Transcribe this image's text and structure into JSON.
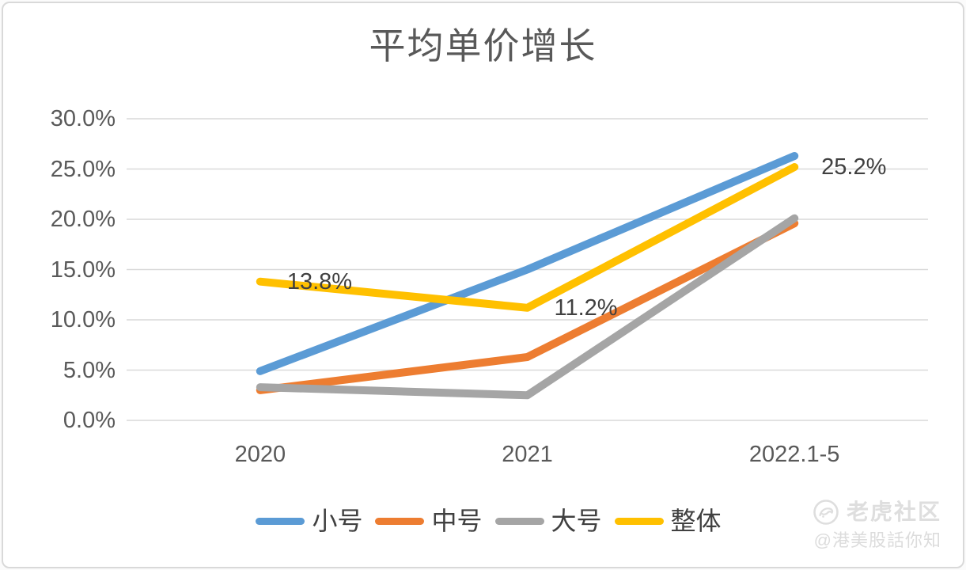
{
  "card": {
    "background": "#ffffff",
    "border_color": "#d9d9d9"
  },
  "chart_data": {
    "type": "line",
    "title": "平均单价增长",
    "title_color": "#595959",
    "categories": [
      "2020",
      "2021",
      "2022.1-5"
    ],
    "series": [
      {
        "name": "小号",
        "color": "#5b9bd5",
        "values": [
          4.9,
          15.0,
          26.3
        ]
      },
      {
        "name": "中号",
        "color": "#ed7d31",
        "values": [
          3.0,
          6.3,
          19.6
        ]
      },
      {
        "name": "大号",
        "color": "#a5a5a5",
        "values": [
          3.3,
          2.5,
          20.1
        ]
      },
      {
        "name": "整体",
        "color": "#ffc000",
        "values": [
          13.8,
          11.2,
          25.2
        ]
      }
    ],
    "y_axis": {
      "ticks": [
        "30.0%",
        "25.0%",
        "20.0%",
        "15.0%",
        "10.0%",
        "5.0%",
        "0.0%"
      ],
      "min": 0,
      "max": 30,
      "step": 5,
      "label_color": "#595959"
    },
    "x_axis": {
      "label_color": "#595959"
    },
    "grid": {
      "show": true,
      "color": "#d9d9d9"
    },
    "data_labels": [
      {
        "text": "13.8%",
        "series_index": 3,
        "category_index": 0
      },
      {
        "text": "11.2%",
        "series_index": 3,
        "category_index": 1
      },
      {
        "text": "25.2%",
        "series_index": 3,
        "category_index": 2
      }
    ],
    "data_label_color": "#404040",
    "legend_position": "bottom",
    "line_width": 10
  },
  "watermark": {
    "community": "老虎社区",
    "handle": "@港美股話你知",
    "color": "#dedede",
    "logo_icon": "tiger-logo-icon"
  }
}
